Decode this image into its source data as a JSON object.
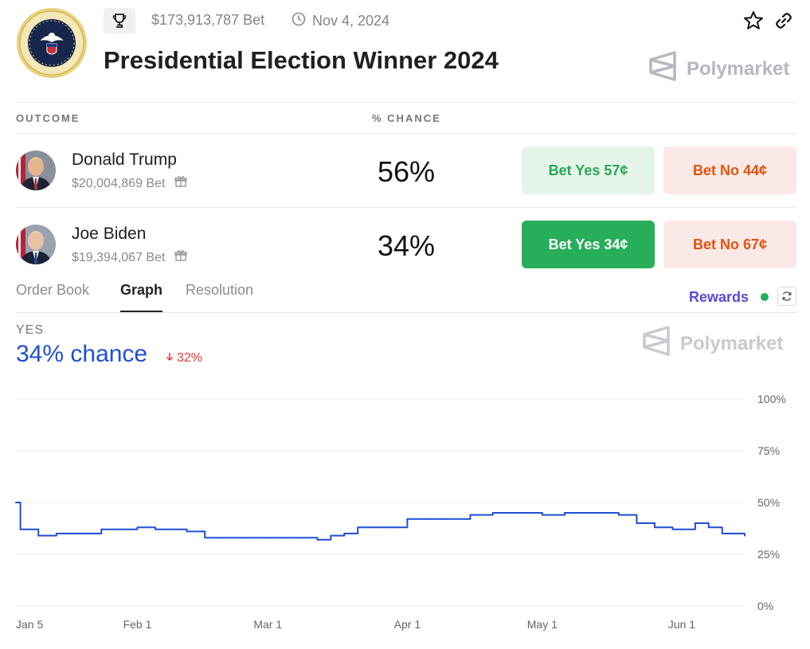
{
  "header": {
    "volume": "$173,913,787 Bet",
    "date": "Nov 4, 2024",
    "title": "Presidential Election Winner 2024",
    "brand": "Polymarket"
  },
  "table": {
    "col_outcome": "OUTCOME",
    "col_chance": "% CHANCE",
    "rows": [
      {
        "name": "Donald Trump",
        "bet": "$20,004,869 Bet",
        "chance": "56%",
        "yes_label": "Bet Yes 57¢",
        "no_label": "Bet No 44¢"
      },
      {
        "name": "Joe Biden",
        "bet": "$19,394,067 Bet",
        "chance": "34%",
        "yes_label": "Bet Yes 34¢",
        "no_label": "Bet No 67¢"
      }
    ]
  },
  "tabs": [
    {
      "label": "Order Book"
    },
    {
      "label": "Graph"
    },
    {
      "label": "Resolution"
    }
  ],
  "rewards_label": "Rewards",
  "graph": {
    "yes_label": "YES",
    "chance": "34% chance",
    "delta": "32%",
    "brand": "Polymarket"
  },
  "colors": {
    "line": "#1f4fd6",
    "yes_green": "#27ae5b",
    "no_orange": "#e2530f",
    "rewards": "#5b49d9",
    "delta_red": "#e03a3a"
  },
  "icons": [
    "trophy-icon",
    "clock-icon",
    "star-icon",
    "link-icon",
    "gift-icon",
    "refresh-icon",
    "arrow-down-icon",
    "polymarket-logo-icon",
    "seal-icon"
  ],
  "chart_data": {
    "type": "line",
    "series": [
      {
        "x": [
          "2024-01-05",
          "2024-01-06",
          "2024-01-08",
          "2024-01-10",
          "2024-01-14",
          "2024-01-20",
          "2024-01-24",
          "2024-01-28",
          "2024-02-01",
          "2024-02-05",
          "2024-02-08",
          "2024-02-12",
          "2024-02-16",
          "2024-02-20",
          "2024-02-24",
          "2024-03-01",
          "2024-03-04",
          "2024-03-08",
          "2024-03-12",
          "2024-03-15",
          "2024-03-18",
          "2024-03-21",
          "2024-03-25",
          "2024-03-29",
          "2024-04-01",
          "2024-04-05",
          "2024-04-10",
          "2024-04-15",
          "2024-04-20",
          "2024-04-25",
          "2024-05-01",
          "2024-05-06",
          "2024-05-10",
          "2024-05-14",
          "2024-05-18",
          "2024-05-22",
          "2024-05-26",
          "2024-05-30",
          "2024-06-01",
          "2024-06-04",
          "2024-06-07",
          "2024-06-10",
          "2024-06-13",
          "2024-06-15"
        ],
        "values": [
          0.5,
          0.37,
          0.37,
          0.34,
          0.35,
          0.35,
          0.37,
          0.37,
          0.38,
          0.37,
          0.37,
          0.36,
          0.33,
          0.33,
          0.33,
          0.33,
          0.33,
          0.33,
          0.32,
          0.34,
          0.35,
          0.38,
          0.38,
          0.38,
          0.42,
          0.42,
          0.42,
          0.44,
          0.45,
          0.45,
          0.44,
          0.45,
          0.45,
          0.45,
          0.44,
          0.4,
          0.38,
          0.37,
          0.37,
          0.4,
          0.38,
          0.35,
          0.35,
          0.34
        ]
      }
    ],
    "x_ticks": [
      "Jan 5",
      "Feb 1",
      "Mar 1",
      "Apr 1",
      "May 1",
      "Jun 1"
    ],
    "y_ticks": [
      "100%",
      "75%",
      "50%",
      "25%",
      "0%"
    ],
    "ylim": [
      0,
      1
    ],
    "grid": true
  }
}
